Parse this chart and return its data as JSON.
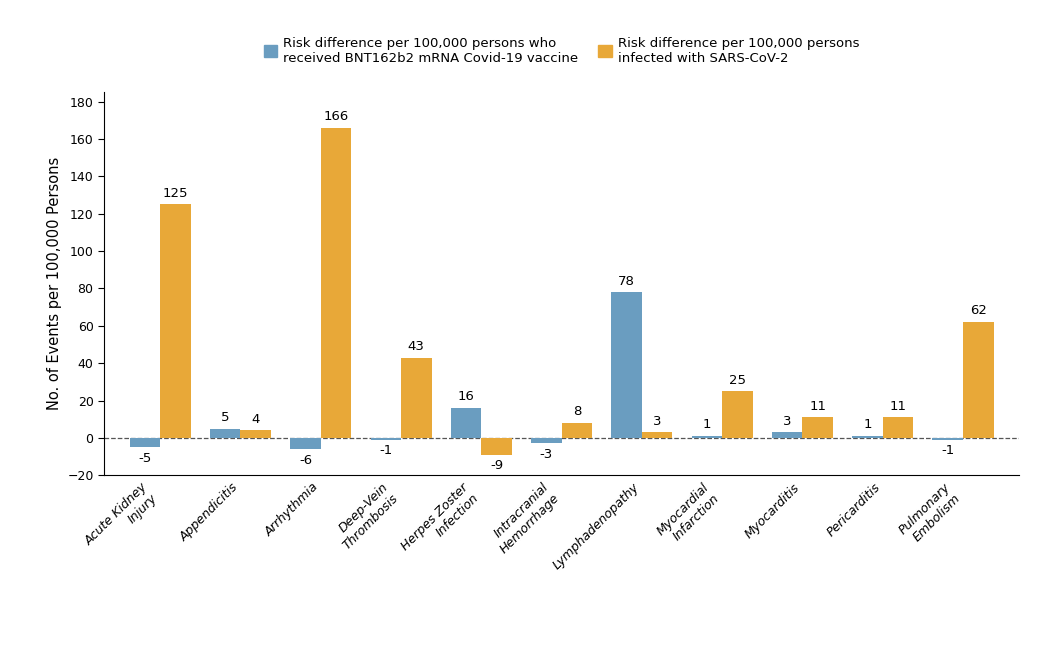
{
  "categories": [
    "Acute Kidney\nInjury",
    "Appendicitis",
    "Arrhythmia",
    "Deep-Vein\nThrombosis",
    "Herpes Zoster\nInfection",
    "Intracranial\nHemorrhage",
    "Lymphadenopathy",
    "Myocardial\nInfarction",
    "Myocarditis",
    "Pericarditis",
    "Pulmonary\nEmbolism"
  ],
  "vaccine_values": [
    -5,
    5,
    -6,
    -1,
    16,
    -3,
    78,
    1,
    3,
    1,
    -1
  ],
  "covid_values": [
    125,
    4,
    166,
    43,
    -9,
    8,
    3,
    25,
    11,
    11,
    62
  ],
  "vaccine_color": "#6a9dc0",
  "covid_color": "#e8a838",
  "ylabel": "No. of Events per 100,000 Persons",
  "ylim_min": -20,
  "ylim_max": 185,
  "yticks": [
    -20,
    0,
    20,
    40,
    60,
    80,
    100,
    120,
    140,
    160,
    180
  ],
  "legend_vaccine": "Risk difference per 100,000 persons who\nreceived BNT162b2 mRNA Covid-19 vaccine",
  "legend_covid": "Risk difference per 100,000 persons\ninfected with SARS-CoV-2",
  "bar_width": 0.38,
  "label_fontsize": 9.5,
  "tick_fontsize": 9,
  "ylabel_fontsize": 10.5
}
